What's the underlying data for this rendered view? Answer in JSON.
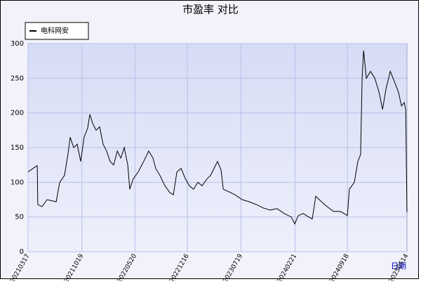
{
  "chart_data": {
    "type": "line",
    "title": "市盈率  对比",
    "x_label": "日期",
    "x": [
      "20210317",
      "20210414",
      "20210423",
      "20210425",
      "20210512",
      "20210601",
      "20210708",
      "20210722",
      "20210810",
      "20210824",
      "20210902",
      "20210916",
      "20210930",
      "20211014",
      "20211028",
      "20211111",
      "20211120",
      "20211201",
      "20211215",
      "20211229",
      "20220112",
      "20220126",
      "20220209",
      "20220223",
      "20220310",
      "20220324",
      "20220407",
      "20220421",
      "20220429",
      "20220513",
      "20220602",
      "20220624",
      "20220714",
      "20220731",
      "20220811",
      "20220828",
      "20220917",
      "20221007",
      "20221021",
      "20221104",
      "20221121",
      "20221208",
      "20221224",
      "20230110",
      "20230127",
      "20230213",
      "20230305",
      "20230319",
      "20230402",
      "20230416",
      "20230430",
      "20230509",
      "20230528",
      "20230625",
      "20230724",
      "20230821",
      "20230918",
      "20231016",
      "20231113",
      "20231211",
      "20240108",
      "20240206",
      "20240220",
      "20240305",
      "20240324",
      "20240416",
      "20240430",
      "20240514",
      "20240606",
      "20240625",
      "20240724",
      "20240821",
      "20240918",
      "20240926",
      "20241016",
      "20241030",
      "20241110",
      "20241116",
      "20241122",
      "20241203",
      "20241220",
      "20250106",
      "20250123",
      "20250206",
      "20250220",
      "20250309",
      "20250326",
      "20250411",
      "20250423",
      "20250504",
      "20250510",
      "20250515"
    ],
    "series": [
      {
        "name": "电科网安",
        "color": "#000000",
        "values": [
          115,
          122,
          124,
          68,
          65,
          75,
          72,
          100,
          110,
          140,
          165,
          150,
          155,
          130,
          165,
          178,
          198,
          185,
          175,
          180,
          155,
          145,
          130,
          125,
          145,
          135,
          150,
          125,
          90,
          105,
          115,
          130,
          145,
          135,
          120,
          110,
          95,
          85,
          82,
          115,
          120,
          105,
          95,
          90,
          100,
          95,
          105,
          110,
          120,
          130,
          118,
          90,
          87,
          82,
          75,
          72,
          68,
          63,
          60,
          62,
          55,
          50,
          40,
          52,
          55,
          50,
          47,
          80,
          72,
          66,
          58,
          58,
          52,
          90,
          100,
          130,
          140,
          250,
          290,
          250,
          260,
          250,
          230,
          205,
          235,
          260,
          245,
          230,
          210,
          215,
          205,
          57
        ]
      }
    ],
    "xlim": [
      "20210317",
      "20250515"
    ],
    "xticks": [
      "20210317",
      "20211019",
      "20220520",
      "20221216",
      "20230719",
      "20240221",
      "20240918",
      "20250514"
    ],
    "ylim": [
      0,
      300
    ],
    "yticks": [
      0,
      50,
      100,
      150,
      200,
      250,
      300
    ],
    "grid": true
  }
}
